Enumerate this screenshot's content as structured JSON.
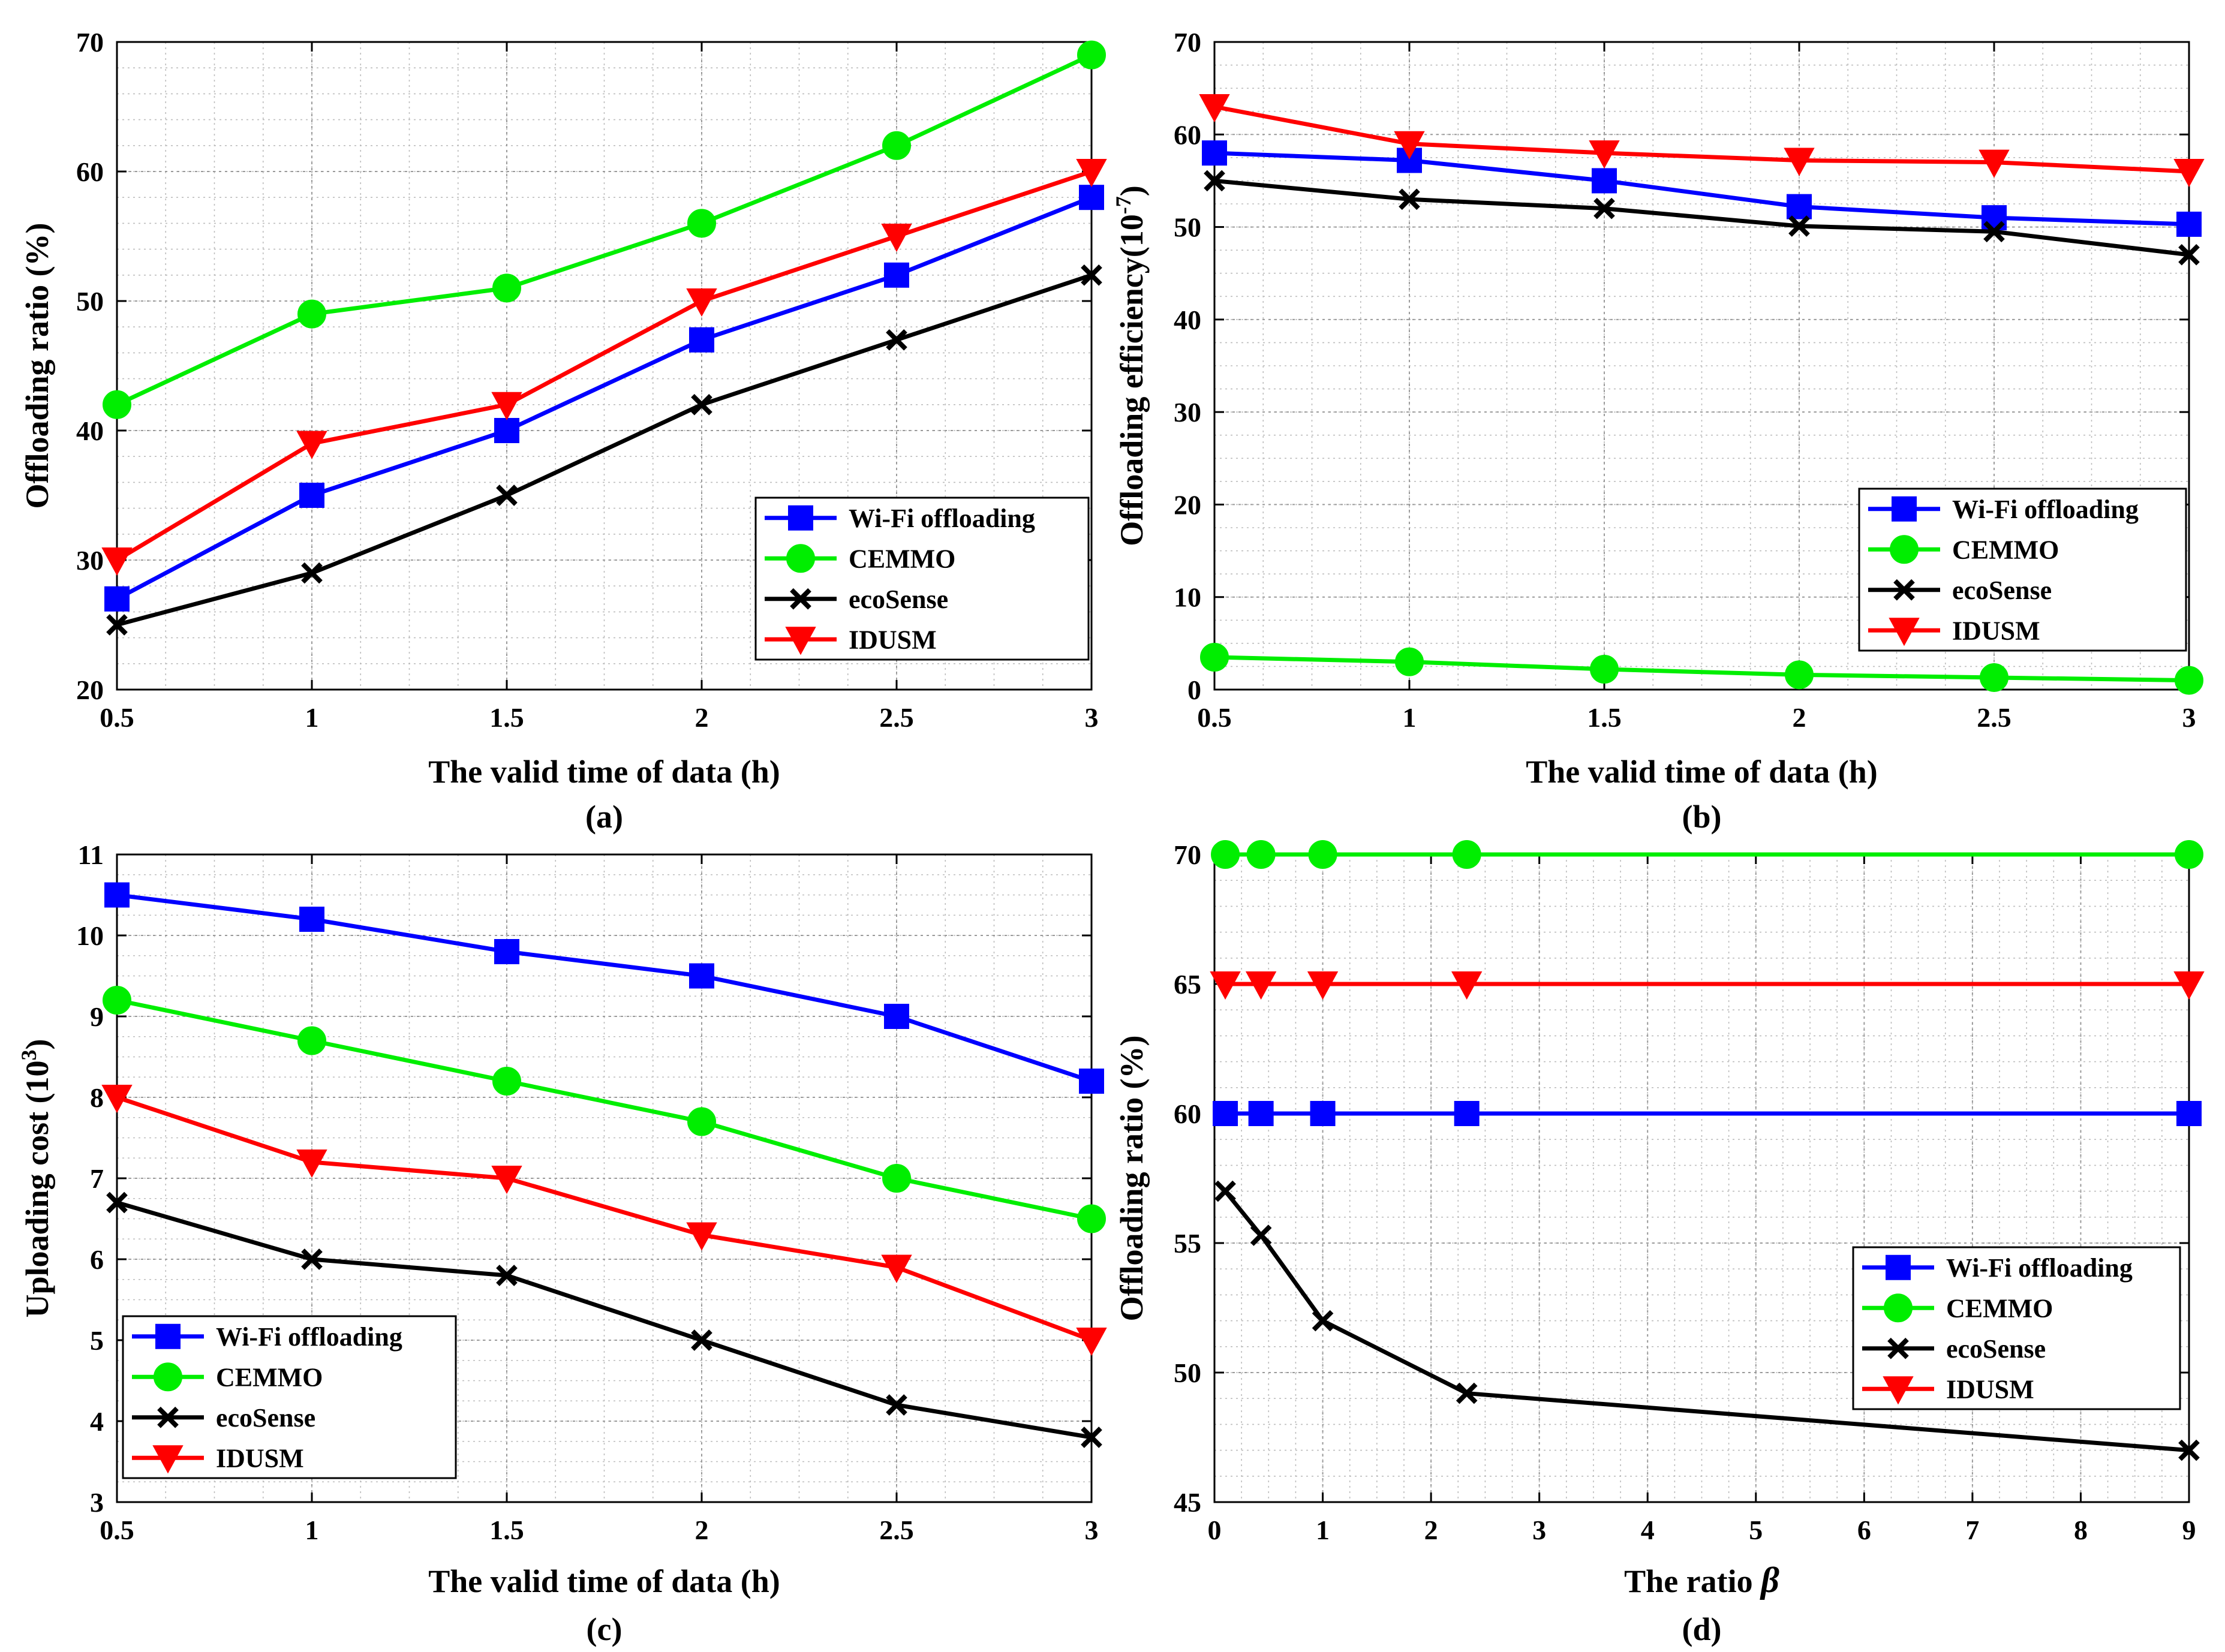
{
  "colors": {
    "wifi": "#0000ff",
    "cemmo": "#00ee00",
    "ecosense": "#000000",
    "idusm": "#ff0000"
  },
  "chart_data": [
    {
      "id": "a",
      "type": "line",
      "caption": "(a)",
      "xlabel": "The valid time of data (h)",
      "ylabel": "Offloading ratio (%)",
      "xlim": [
        0.5,
        3
      ],
      "ylim": [
        20,
        70
      ],
      "xticks": [
        0.5,
        1,
        1.5,
        2,
        2.5,
        3
      ],
      "xtick_labels": [
        "0.5",
        "1",
        "1.5",
        "2",
        "2.5",
        "3"
      ],
      "yticks": [
        20,
        30,
        40,
        50,
        60,
        70
      ],
      "ytick_labels": [
        "20",
        "30",
        "40",
        "50",
        "60",
        "70"
      ],
      "grid": true,
      "legend_position": "bottom-right",
      "series": [
        {
          "name": "Wi-Fi offloading",
          "key": "wifi",
          "marker": "square",
          "x": [
            0.5,
            1,
            1.5,
            2,
            2.5,
            3
          ],
          "values": [
            27,
            35,
            40,
            47,
            52,
            58
          ]
        },
        {
          "name": "CEMMO",
          "key": "cemmo",
          "marker": "circle",
          "x": [
            0.5,
            1,
            1.5,
            2,
            2.5,
            3
          ],
          "values": [
            42,
            49,
            51,
            56,
            62,
            69
          ]
        },
        {
          "name": "ecoSense",
          "key": "ecosense",
          "marker": "x",
          "x": [
            0.5,
            1,
            1.5,
            2,
            2.5,
            3
          ],
          "values": [
            25,
            29,
            35,
            42,
            47,
            52
          ]
        },
        {
          "name": "IDUSM",
          "key": "idusm",
          "marker": "triangle-down",
          "x": [
            0.5,
            1,
            1.5,
            2,
            2.5,
            3
          ],
          "values": [
            30,
            39,
            42,
            50,
            55,
            60
          ]
        }
      ]
    },
    {
      "id": "b",
      "type": "line",
      "caption": "(b)",
      "xlabel": "The valid time of data (h)",
      "ylabel": "Offloading efficiency(10",
      "ylabel_superscript": "-7",
      "ylabel_suffix": ")",
      "xlim": [
        0.5,
        3
      ],
      "ylim": [
        0,
        70
      ],
      "xticks": [
        0.5,
        1,
        1.5,
        2,
        2.5,
        3
      ],
      "xtick_labels": [
        "0.5",
        "1",
        "1.5",
        "2",
        "2.5",
        "3"
      ],
      "yticks": [
        0,
        10,
        20,
        30,
        40,
        50,
        60,
        70
      ],
      "ytick_labels": [
        "0",
        "10",
        "20",
        "30",
        "40",
        "50",
        "60",
        "70"
      ],
      "grid": true,
      "legend_position": "middle-right",
      "series": [
        {
          "name": "Wi-Fi offloading",
          "key": "wifi",
          "marker": "square",
          "x": [
            0.5,
            1,
            1.5,
            2,
            2.5,
            3
          ],
          "values": [
            58,
            57.2,
            55,
            52.2,
            51,
            50.3
          ]
        },
        {
          "name": "CEMMO",
          "key": "cemmo",
          "marker": "circle",
          "x": [
            0.5,
            1,
            1.5,
            2,
            2.5,
            3
          ],
          "values": [
            3.5,
            3,
            2.2,
            1.6,
            1.3,
            1
          ]
        },
        {
          "name": "ecoSense",
          "key": "ecosense",
          "marker": "x",
          "x": [
            0.5,
            1,
            1.5,
            2,
            2.5,
            3
          ],
          "values": [
            55,
            53,
            52,
            50.1,
            49.5,
            47
          ]
        },
        {
          "name": "IDUSM",
          "key": "idusm",
          "marker": "triangle-down",
          "x": [
            0.5,
            1,
            1.5,
            2,
            2.5,
            3
          ],
          "values": [
            63,
            59,
            58,
            57.2,
            57,
            56
          ]
        }
      ]
    },
    {
      "id": "c",
      "type": "line",
      "caption": "(c)",
      "xlabel": "The valid time of data (h)",
      "ylabel": "Uploading cost (10",
      "ylabel_superscript": "3",
      "ylabel_suffix": ")",
      "xlim": [
        0.5,
        3
      ],
      "ylim": [
        3,
        11
      ],
      "xticks": [
        0.5,
        1,
        1.5,
        2,
        2.5,
        3
      ],
      "xtick_labels": [
        "0.5",
        "1",
        "1.5",
        "2",
        "2.5",
        "3"
      ],
      "yticks": [
        3,
        4,
        5,
        6,
        7,
        8,
        9,
        10,
        11
      ],
      "ytick_labels": [
        "3",
        "4",
        "5",
        "6",
        "7",
        "8",
        "9",
        "10",
        "11"
      ],
      "grid": true,
      "legend_position": "bottom-left",
      "series": [
        {
          "name": "Wi-Fi offloading",
          "key": "wifi",
          "marker": "square",
          "x": [
            0.5,
            1,
            1.5,
            2,
            2.5,
            3
          ],
          "values": [
            10.5,
            10.2,
            9.8,
            9.5,
            9,
            8.2
          ]
        },
        {
          "name": "CEMMO",
          "key": "cemmo",
          "marker": "circle",
          "x": [
            0.5,
            1,
            1.5,
            2,
            2.5,
            3
          ],
          "values": [
            9.2,
            8.7,
            8.2,
            7.7,
            7,
            6.5
          ]
        },
        {
          "name": "ecoSense",
          "key": "ecosense",
          "marker": "x",
          "x": [
            0.5,
            1,
            1.5,
            2,
            2.5,
            3
          ],
          "values": [
            6.7,
            6,
            5.8,
            5,
            4.2,
            3.8
          ]
        },
        {
          "name": "IDUSM",
          "key": "idusm",
          "marker": "triangle-down",
          "x": [
            0.5,
            1,
            1.5,
            2,
            2.5,
            3
          ],
          "values": [
            8,
            7.2,
            7,
            6.3,
            5.9,
            5
          ]
        }
      ]
    },
    {
      "id": "d",
      "type": "line",
      "caption": "(d)",
      "xlabel": "The ratio ",
      "xlabel_symbol": "β",
      "ylabel": "Offloading ratio (%)",
      "xlim": [
        0,
        9
      ],
      "ylim": [
        45,
        70
      ],
      "xticks": [
        0,
        1,
        2,
        3,
        4,
        5,
        6,
        7,
        8,
        9
      ],
      "xtick_labels": [
        "0",
        "1",
        "2",
        "3",
        "4",
        "5",
        "6",
        "7",
        "8",
        "9"
      ],
      "yticks": [
        45,
        50,
        55,
        60,
        65,
        70
      ],
      "ytick_labels": [
        "45",
        "50",
        "55",
        "60",
        "65",
        "70"
      ],
      "grid": true,
      "legend_position": "middle-right",
      "series": [
        {
          "name": "Wi-Fi offloading",
          "key": "wifi",
          "marker": "square",
          "x": [
            0.1,
            0.43,
            1,
            2.33,
            9
          ],
          "values": [
            60,
            60,
            60,
            60,
            60
          ]
        },
        {
          "name": "CEMMO",
          "key": "cemmo",
          "marker": "circle",
          "x": [
            0.1,
            0.43,
            1,
            2.33,
            9
          ],
          "values": [
            70,
            70,
            70,
            70,
            70
          ]
        },
        {
          "name": "ecoSense",
          "key": "ecosense",
          "marker": "x",
          "x": [
            0.1,
            0.43,
            1,
            2.33,
            9
          ],
          "values": [
            57,
            55.3,
            52,
            49.2,
            47
          ]
        },
        {
          "name": "IDUSM",
          "key": "idusm",
          "marker": "triangle-down",
          "x": [
            0.1,
            0.43,
            1,
            2.33,
            9
          ],
          "values": [
            65,
            65,
            65,
            65,
            65
          ]
        }
      ]
    }
  ]
}
